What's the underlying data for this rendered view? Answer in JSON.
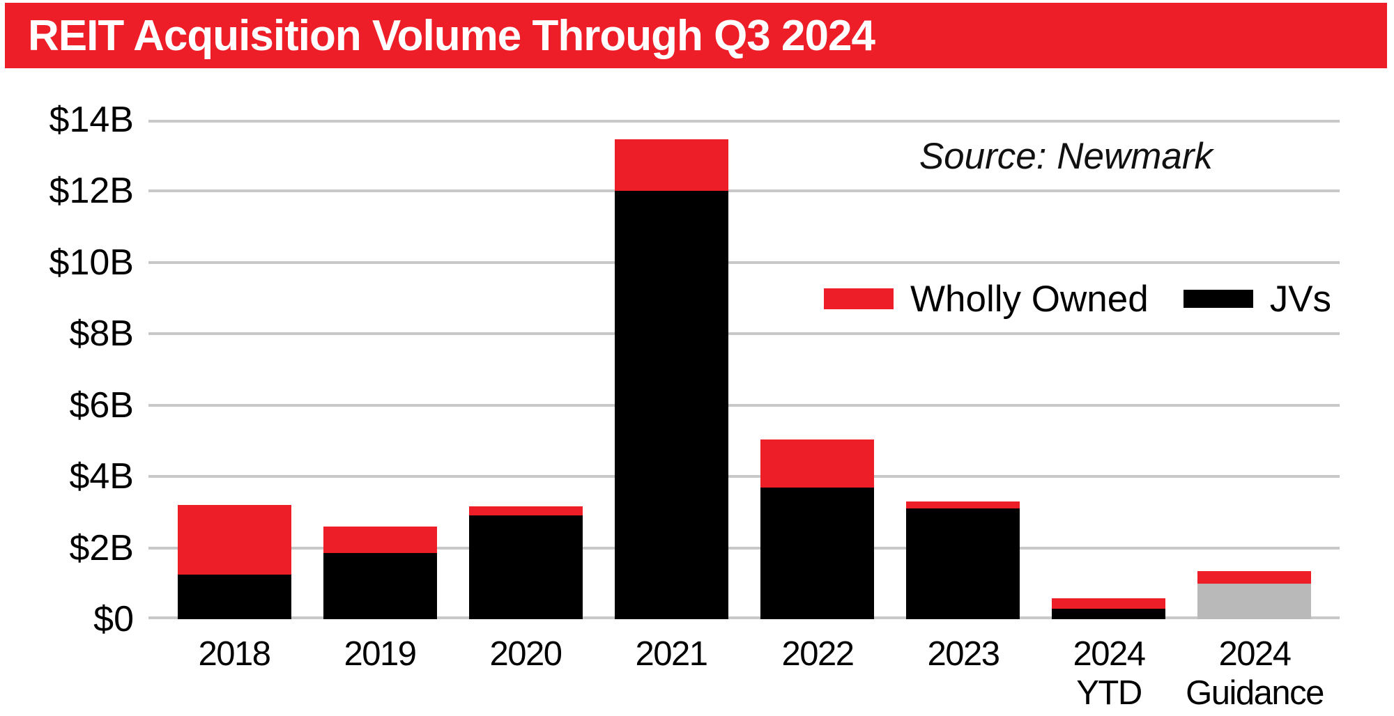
{
  "colors": {
    "brand_red": "#ed1e28",
    "black": "#000000",
    "guidance_gray": "#b9b9b9",
    "gridline": "#c8c8c8",
    "title_text": "#ffffff"
  },
  "chart_data": {
    "type": "bar",
    "stacked": true,
    "title": "REIT Acquisition Volume Through Q3 2024",
    "source_note": "Source: Newmark",
    "unit": "USD billions",
    "categories": [
      "2018",
      "2019",
      "2020",
      "2021",
      "2022",
      "2023",
      "2024 YTD",
      "2024 Guidance"
    ],
    "category_label_lines": [
      [
        "2018"
      ],
      [
        "2019"
      ],
      [
        "2020"
      ],
      [
        "2021"
      ],
      [
        "2022"
      ],
      [
        "2023"
      ],
      [
        "2024",
        "YTD"
      ],
      [
        "2024",
        "Guidance"
      ]
    ],
    "series": [
      {
        "name": "JVs",
        "color_key": "black",
        "in_legend": true,
        "values": [
          1.25,
          1.85,
          2.9,
          12.0,
          3.7,
          3.1,
          0.3,
          0
        ]
      },
      {
        "name": "Guidance base (gray)",
        "color_key": "guidance_gray",
        "in_legend": false,
        "values": [
          0,
          0,
          0,
          0,
          0,
          0,
          0,
          1.0
        ]
      },
      {
        "name": "Wholly Owned",
        "color_key": "brand_red",
        "in_legend": true,
        "values": [
          1.95,
          0.75,
          0.25,
          1.45,
          1.35,
          0.2,
          0.3,
          0.35
        ]
      }
    ],
    "totals_B": [
      3.2,
      2.6,
      3.15,
      13.45,
      5.05,
      3.3,
      0.6,
      1.35
    ],
    "y_axis": {
      "min": 0,
      "max": 14,
      "step": 2,
      "tick_labels": [
        "$0",
        "$2B",
        "$4B",
        "$6B",
        "$8B",
        "$10B",
        "$12B",
        "$14B"
      ]
    },
    "legend": {
      "position": "middle-right",
      "items": [
        {
          "label": "Wholly Owned",
          "color_key": "brand_red"
        },
        {
          "label": "JVs",
          "color_key": "black"
        }
      ]
    },
    "gridlines": true
  }
}
